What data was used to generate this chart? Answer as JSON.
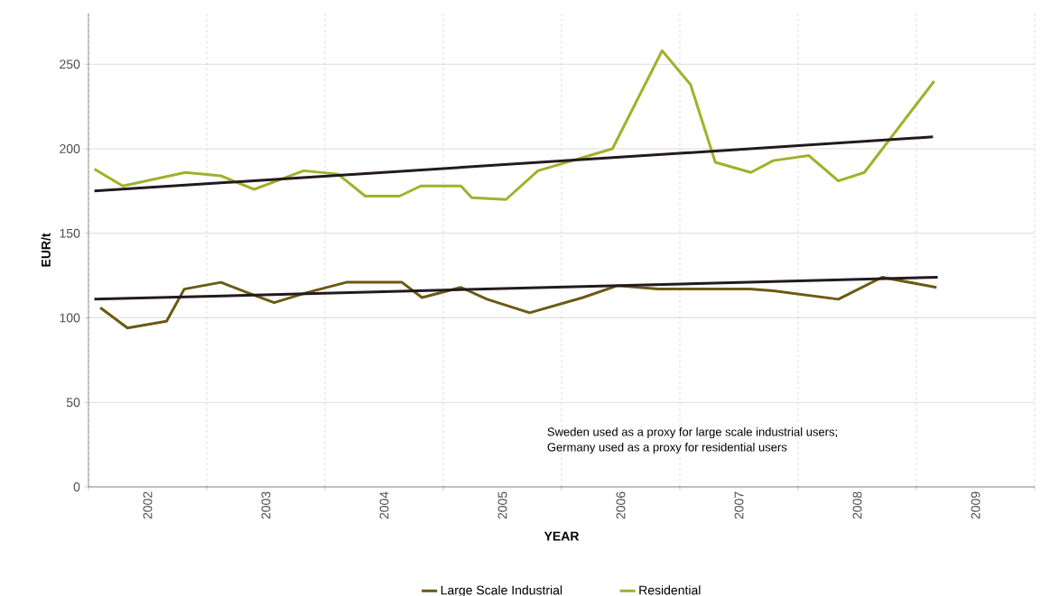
{
  "chart_data": {
    "type": "line",
    "xlabel": "YEAR",
    "ylabel": "EUR/t",
    "xlim": [
      2002,
      2010
    ],
    "ylim": [
      0,
      280
    ],
    "xticks": [
      {
        "value": 2002,
        "label": null
      },
      {
        "value": 2003,
        "label": null
      },
      {
        "value": 2004,
        "label": null
      },
      {
        "value": 2005,
        "label": null
      },
      {
        "value": 2006,
        "label": null
      },
      {
        "value": 2007,
        "label": null
      },
      {
        "value": 2008,
        "label": null
      },
      {
        "value": 2009,
        "label": null
      },
      {
        "value": 2010,
        "label": null
      },
      {
        "value": 2002.5,
        "label": "2002"
      },
      {
        "value": 2003.5,
        "label": "2003"
      },
      {
        "value": 2004.5,
        "label": "2004"
      },
      {
        "value": 2005.5,
        "label": "2005"
      },
      {
        "value": 2006.5,
        "label": "2006"
      },
      {
        "value": 2007.5,
        "label": "2007"
      },
      {
        "value": 2008.5,
        "label": "2008"
      },
      {
        "value": 2009.5,
        "label": "2009"
      }
    ],
    "yticks": [
      0,
      50,
      100,
      150,
      200,
      250
    ],
    "grid": true,
    "legend": "bottom",
    "series": [
      {
        "name": "Large Scale Industrial",
        "color": "#6b5a12",
        "x": [
          2002.1,
          2002.33,
          2002.66,
          2002.81,
          2003.12,
          2003.34,
          2003.57,
          2003.85,
          2004.18,
          2004.65,
          2004.82,
          2005.15,
          2005.37,
          2005.73,
          2006.18,
          2006.47,
          2006.82,
          2007.59,
          2007.79,
          2008.34,
          2008.71,
          2009.17
        ],
        "values": [
          106,
          94,
          98,
          117,
          121,
          115,
          109,
          115,
          121,
          121,
          112,
          118,
          111,
          103,
          112,
          119,
          117,
          117,
          116,
          111,
          124,
          118
        ]
      },
      {
        "name": "Residential",
        "color": "#9fb22a",
        "x": [
          2002.05,
          2002.29,
          2002.82,
          2003.12,
          2003.4,
          2003.82,
          2004.11,
          2004.34,
          2004.63,
          2004.81,
          2005.15,
          2005.24,
          2005.53,
          2005.8,
          2006.43,
          2006.85,
          2007.09,
          2007.3,
          2007.6,
          2007.79,
          2008.09,
          2008.34,
          2008.56,
          2009.15
        ],
        "values": [
          188,
          178,
          186,
          184,
          176,
          187,
          185,
          172,
          172,
          178,
          178,
          171,
          170,
          187,
          200,
          258,
          238,
          192,
          186,
          193,
          196,
          181,
          186,
          240
        ]
      },
      {
        "color": "#231a20",
        "x": [
          2002.05,
          2009.14
        ],
        "values": [
          175,
          207
        ]
      },
      {
        "color": "#231a20",
        "x": [
          2002.05,
          2009.18
        ],
        "values": [
          111,
          124
        ]
      }
    ],
    "annotations": [
      "Sweden used as a proxy for large scale industrial users;",
      "Germany used as a proxy for residential users"
    ]
  }
}
